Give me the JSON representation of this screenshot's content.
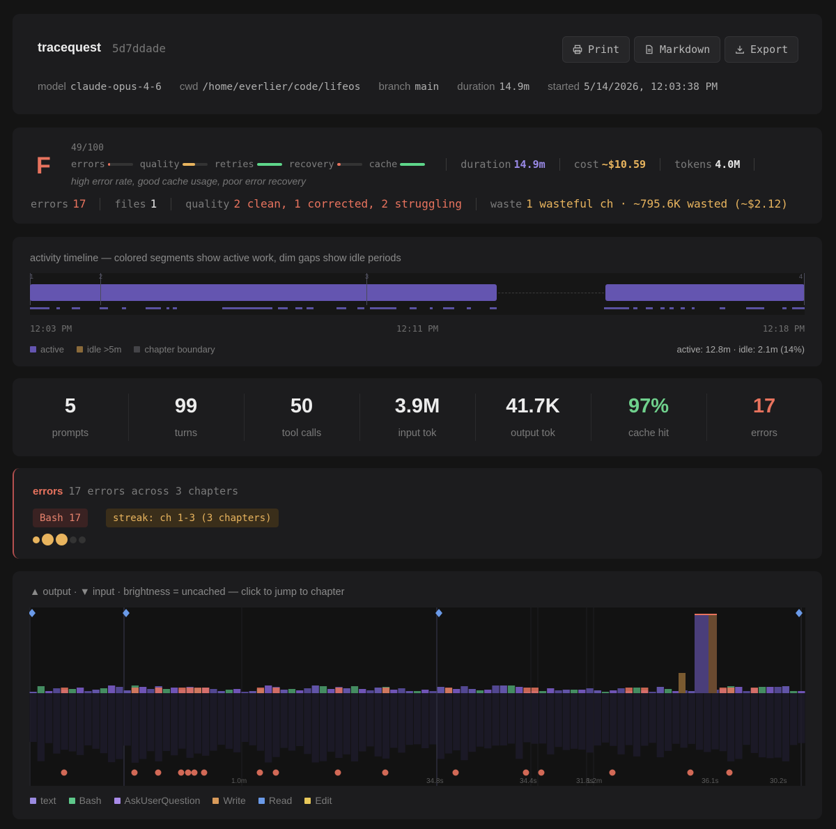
{
  "header": {
    "title": "tracequest",
    "hash": "5d7ddade",
    "buttons": {
      "print": "Print",
      "markdown": "Markdown",
      "export": "Export"
    },
    "meta": [
      {
        "key": "model",
        "value": "claude-opus-4-6"
      },
      {
        "key": "cwd",
        "value": "/home/everlier/code/lifeos"
      },
      {
        "key": "branch",
        "value": "main"
      },
      {
        "key": "duration",
        "value": "14.9m"
      },
      {
        "key": "started",
        "value": "5/14/2026, 12:03:38 PM"
      }
    ]
  },
  "grade": {
    "letter": "F",
    "score": "49/100",
    "metrics": [
      {
        "label": "errors",
        "level": 0.1,
        "color": "#e8735e"
      },
      {
        "label": "quality",
        "level": 0.5,
        "color": "#e8b45e"
      },
      {
        "label": "retries",
        "level": 1.0,
        "color": "#5ed68a"
      },
      {
        "label": "recovery",
        "level": 0.15,
        "color": "#e8735e"
      },
      {
        "label": "cache",
        "level": 1.0,
        "color": "#5ed68a"
      }
    ],
    "duration_label": "duration",
    "duration_value": "14.9m",
    "cost_label": "cost",
    "cost_value": "~$10.59",
    "tokens_label": "tokens",
    "tokens_value": "4.0M",
    "summary": "high error rate, good cache usage, poor error recovery",
    "errors_label": "errors",
    "errors_value": "17",
    "files_label": "files",
    "files_value": "1",
    "quality_label": "quality",
    "quality_value": "2 clean, 1 corrected, 2 struggling",
    "waste_label": "waste",
    "waste_value": "1 wasteful ch · ~795.6K wasted (~$2.12)"
  },
  "timeline": {
    "title": "activity timeline — colored segments show active work, dim gaps show idle periods",
    "chapters": [
      "1",
      "2",
      "3",
      "4"
    ],
    "time_start": "12:03 PM",
    "time_mid": "12:11 PM",
    "time_end": "12:18 PM",
    "legend": [
      {
        "label": "active",
        "color": "#6455b0"
      },
      {
        "label": "idle >5m",
        "color": "#8a6a3a"
      },
      {
        "label": "chapter boundary",
        "color": "#444448"
      }
    ],
    "summary": "active: 12.8m · idle: 2.1m (14%)"
  },
  "stats": [
    {
      "value": "5",
      "label": "prompts",
      "color": "#ececec"
    },
    {
      "value": "99",
      "label": "turns",
      "color": "#ececec"
    },
    {
      "value": "50",
      "label": "tool calls",
      "color": "#ececec"
    },
    {
      "value": "3.9M",
      "label": "input tok",
      "color": "#ececec"
    },
    {
      "value": "41.7K",
      "label": "output tok",
      "color": "#ececec"
    },
    {
      "value": "97%",
      "label": "cache hit",
      "color": "#6fd08c"
    },
    {
      "value": "17",
      "label": "errors",
      "color": "#e8735e"
    }
  ],
  "errors": {
    "title": "errors",
    "detail": "17 errors across 3 chapters",
    "chips": [
      "Bash 17",
      "streak: ch 1-3 (3 chapters)"
    ]
  },
  "token_chart": {
    "title": "▲ output · ▼ input · brightness = uncached — click to jump to chapter",
    "duration_labels": [
      "1.0m",
      "34.8s",
      "34.4s",
      "31.8s",
      "1.2m",
      "36.1s",
      "30.2s"
    ],
    "legend": [
      {
        "label": "text",
        "color": "#9a8ae0"
      },
      {
        "label": "Bash",
        "color": "#5ec88a"
      },
      {
        "label": "AskUserQuestion",
        "color": "#a88ae8"
      },
      {
        "label": "Write",
        "color": "#d89a5a"
      },
      {
        "label": "Read",
        "color": "#6a9ae8"
      },
      {
        "label": "Edit",
        "color": "#e8c85a"
      }
    ]
  },
  "colors": {
    "accent": "#6455b0",
    "error": "#e8735e",
    "good": "#6fd08c",
    "warn": "#e8b45e"
  }
}
